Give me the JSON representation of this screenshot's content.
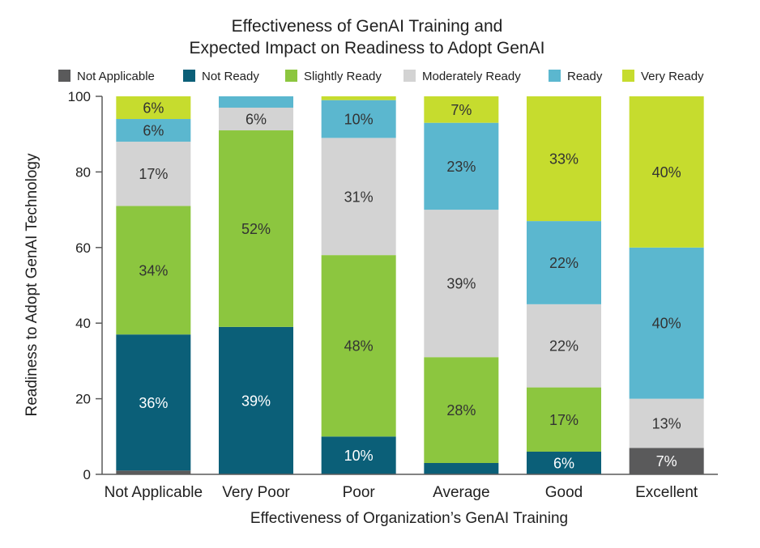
{
  "chart_data": {
    "type": "bar",
    "stacked": true,
    "title_line1": "Effectiveness of GenAI Training and",
    "title_line2": "Expected Impact on Readiness to Adopt GenAI",
    "xlabel": "Effectiveness of Organization’s GenAI Training",
    "ylabel": "Readiness to Adopt GenAI Technology",
    "ylim": [
      0,
      100
    ],
    "yticks": [
      0,
      20,
      40,
      60,
      80,
      100
    ],
    "grid": false,
    "legend_position": "top",
    "categories": [
      "Not Applicable",
      "Very Poor",
      "Poor",
      "Average",
      "Good",
      "Excellent"
    ],
    "series": [
      {
        "name": "Not Applicable",
        "color": "#5a5a5b",
        "text_color": "#ffffff",
        "values": [
          1,
          0,
          0,
          0,
          0,
          7
        ],
        "labels": [
          "",
          "",
          "",
          "",
          "",
          "7%"
        ]
      },
      {
        "name": "Not Ready",
        "color": "#0b5f78",
        "text_color": "#ffffff",
        "values": [
          36,
          39,
          10,
          3,
          6,
          0
        ],
        "labels": [
          "36%",
          "39%",
          "10%",
          "",
          "6%",
          ""
        ]
      },
      {
        "name": "Slightly Ready",
        "color": "#8cc63f",
        "text_color": "#333333",
        "values": [
          34,
          52,
          48,
          28,
          17,
          0
        ],
        "labels": [
          "34%",
          "52%",
          "48%",
          "28%",
          "17%",
          ""
        ]
      },
      {
        "name": "Moderately Ready",
        "color": "#d3d3d3",
        "text_color": "#333333",
        "values": [
          17,
          6,
          31,
          39,
          22,
          13
        ],
        "labels": [
          "17%",
          "6%",
          "31%",
          "39%",
          "22%",
          "13%"
        ]
      },
      {
        "name": "Ready",
        "color": "#5bb7cf",
        "text_color": "#333333",
        "values": [
          6,
          3,
          10,
          23,
          22,
          40
        ],
        "labels": [
          "6%",
          "",
          "10%",
          "23%",
          "22%",
          "40%"
        ]
      },
      {
        "name": "Very Ready",
        "color": "#c6dc2e",
        "text_color": "#333333",
        "values": [
          6,
          0,
          1,
          7,
          33,
          40
        ],
        "labels": [
          "6%",
          "",
          "",
          "7%",
          "33%",
          "40%"
        ]
      }
    ]
  }
}
